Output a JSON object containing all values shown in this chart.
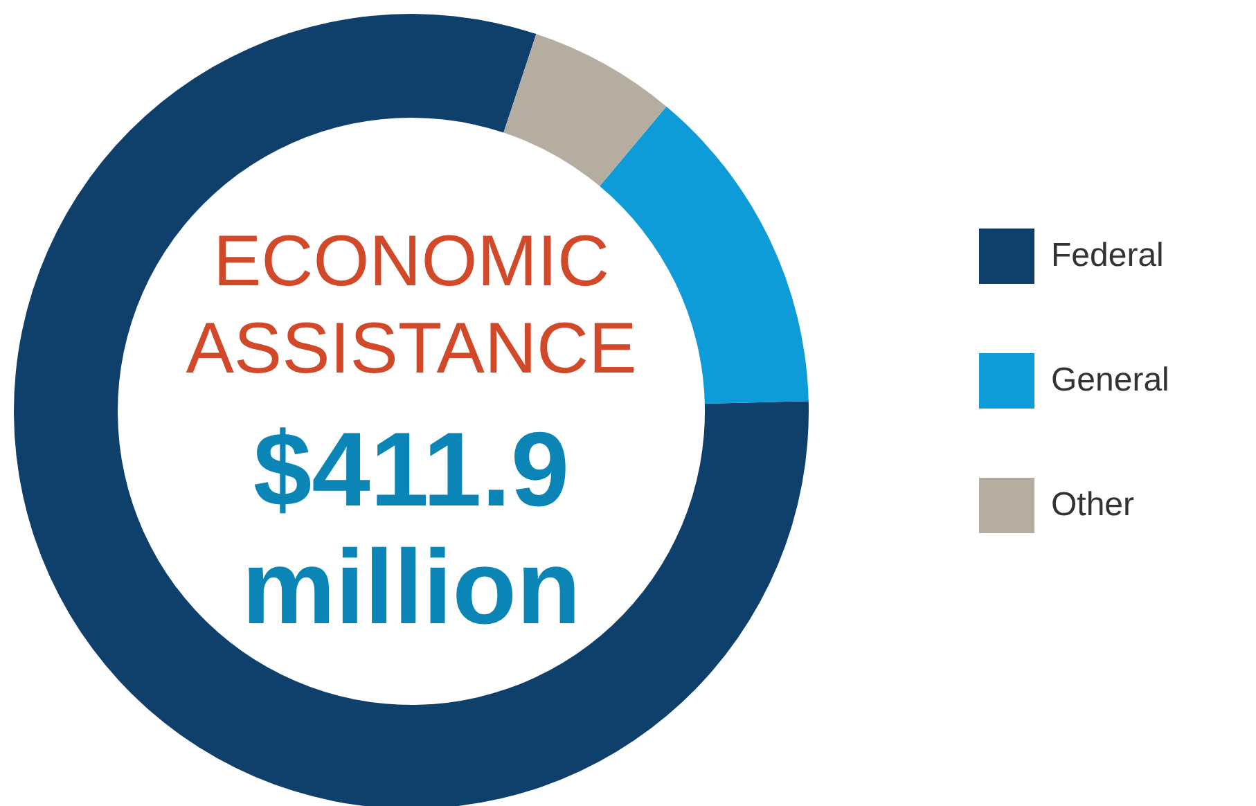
{
  "chart_data": {
    "type": "donut",
    "title": "ECONOMIC ASSISTANCE",
    "subtitle": "$411.9 million",
    "categories": [
      "Federal",
      "General",
      "Other"
    ],
    "values": [
      80.5,
      13.5,
      6
    ],
    "colors": [
      "#0f3f6b",
      "#0e9cd9",
      "#b5ada0"
    ],
    "legend": "right"
  }
}
